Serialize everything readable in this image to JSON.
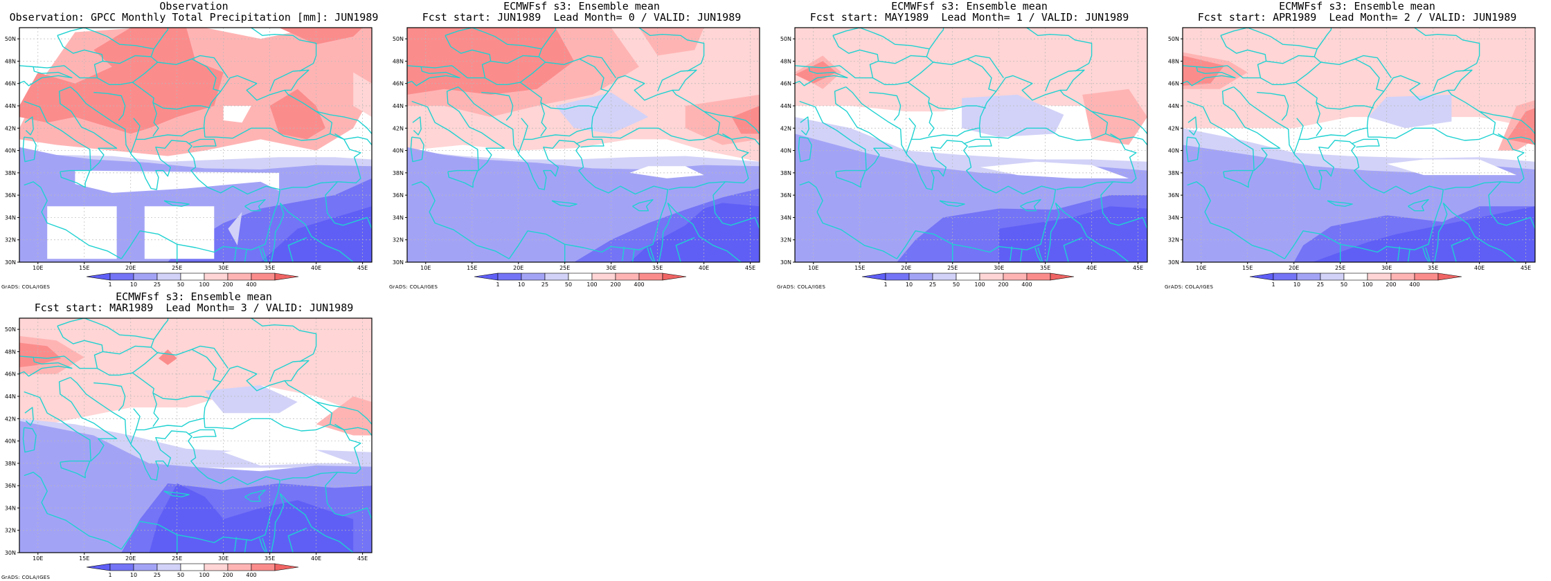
{
  "figure": {
    "credit": "GrADS: COLA/IGES",
    "panels": [
      {
        "title_line1": "Observation",
        "title_line2": "Observation: GPCC Monthly Total Precipitation [mm]: JUN1989",
        "variant": "obs"
      },
      {
        "title_line1": "ECMWFsf s3: Ensemble mean",
        "title_line2": "Fcst start: JUN1989  Lead Month= 0 / VALID: JUN1989",
        "variant": "lead0"
      },
      {
        "title_line1": "ECMWFsf s3: Ensemble mean",
        "title_line2": "Fcst start: MAY1989  Lead Month= 1 / VALID: JUN1989",
        "variant": "lead1"
      },
      {
        "title_line1": "ECMWFsf s3: Ensemble mean",
        "title_line2": "Fcst start: APR1989  Lead Month= 2 / VALID: JUN1989",
        "variant": "lead2"
      },
      {
        "title_line1": "ECMWFsf s3: Ensemble mean",
        "title_line2": "Fcst start: MAR1989  Lead Month= 3 / VALID: JUN1989",
        "variant": "lead3"
      }
    ],
    "lon_ticks": [
      "10E",
      "15E",
      "20E",
      "25E",
      "30E",
      "35E",
      "40E",
      "45E"
    ],
    "lat_ticks": [
      "30N",
      "32N",
      "34N",
      "36N",
      "38N",
      "40N",
      "42N",
      "44N",
      "46N",
      "48N",
      "50N"
    ],
    "lon_range": [
      8,
      46
    ],
    "lat_range": [
      30,
      51
    ],
    "colorbar": {
      "labels": [
        "1",
        "10",
        "25",
        "50",
        "100",
        "200",
        "400"
      ],
      "colors": [
        "#5f5ff6",
        "#7474f6",
        "#a3a3f6",
        "#d2d2f8",
        "#ffffff",
        "#ffd5d5",
        "#ffb4b4",
        "#fb8c8c",
        "#ef6464"
      ]
    },
    "coast_color": "#1fd1d1"
  }
}
